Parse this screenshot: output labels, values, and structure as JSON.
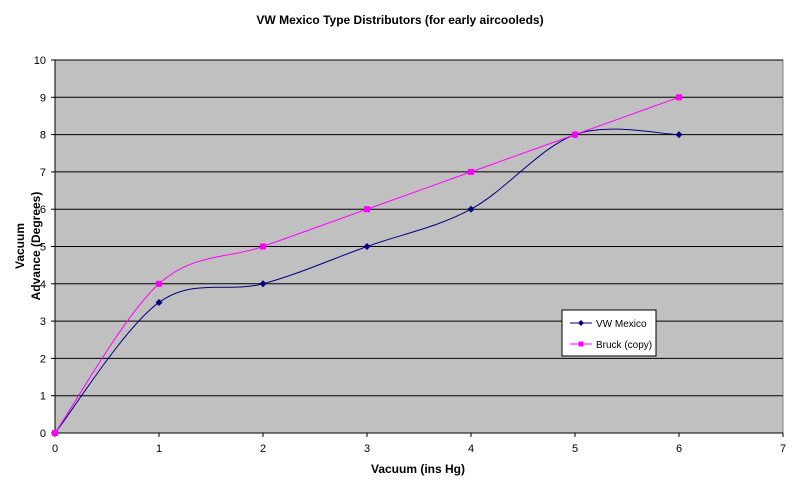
{
  "chart_data": {
    "type": "line",
    "title": "VW Mexico Type Distributors (for early aircooleds)",
    "xlabel": "Vacuum (ins Hg)",
    "ylabel_lines": [
      "Vacuum",
      "Advance (Degrees)"
    ],
    "xlim": [
      0,
      7
    ],
    "ylim": [
      0,
      10
    ],
    "x_ticks": [
      "0",
      "1",
      "2",
      "3",
      "4",
      "5",
      "6",
      "7"
    ],
    "y_ticks": [
      "0",
      "1",
      "2",
      "3",
      "4",
      "5",
      "6",
      "7",
      "8",
      "9",
      "10"
    ],
    "grid": "horizontal",
    "smoothed": true,
    "legend_position": "right",
    "plot_background": "#c0c0c0",
    "series": [
      {
        "name": "VW Mexico",
        "color": "#000080",
        "marker": "diamond",
        "x": [
          0,
          1,
          2,
          3,
          4,
          5,
          6
        ],
        "y": [
          0,
          3.5,
          4,
          5,
          6,
          8,
          8
        ]
      },
      {
        "name": "Bruck (copy)",
        "color": "#ff00ff",
        "marker": "square",
        "x": [
          0,
          1,
          2,
          3,
          4,
          5,
          6
        ],
        "y": [
          0,
          4,
          5,
          6,
          7,
          8,
          9
        ]
      }
    ]
  }
}
